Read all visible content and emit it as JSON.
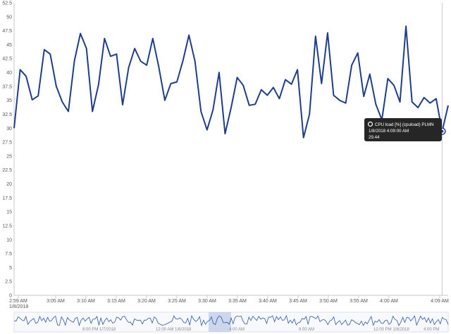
{
  "chart_data": {
    "type": "line",
    "title": "",
    "xlabel": "",
    "ylabel": "",
    "ylim": [
      0,
      52.5
    ],
    "y_ticks": [
      0,
      2.5,
      5,
      7.5,
      10,
      12.5,
      15,
      17.5,
      20,
      22.5,
      25,
      27.5,
      30,
      32.5,
      35,
      37.5,
      40,
      42.5,
      45,
      47.5,
      50,
      52.5
    ],
    "x_ticks": [
      "2:59 AM",
      "3:05 AM",
      "3:10 AM",
      "3:15 AM",
      "3:20 AM",
      "3:25 AM",
      "3:30 AM",
      "3:35 AM",
      "3:40 AM",
      "3:45 AM",
      "3:50 AM",
      "3:55 AM",
      "4:00 AM",
      "4:09 AM"
    ],
    "x_date_label": "1/8/2018",
    "grid": false,
    "series": [
      {
        "name": "CPU load [%] (cpuload) PLMN",
        "color": "#1f3d8c",
        "values": [
          30.0,
          40.5,
          39.3,
          35.1,
          35.8,
          44.1,
          43.3,
          37.5,
          34.7,
          33.0,
          42.1,
          47.0,
          44.3,
          33.0,
          37.8,
          46.1,
          42.9,
          43.3,
          34.2,
          40.9,
          44.3,
          42.0,
          41.3,
          46.1,
          41.0,
          35.0,
          38.0,
          38.3,
          42.1,
          46.7,
          42.0,
          33.0,
          29.7,
          33.3,
          40.0,
          29.0,
          33.7,
          39.1,
          37.7,
          34.1,
          34.3,
          36.9,
          35.9,
          37.3,
          35.3,
          38.7,
          37.9,
          40.5,
          28.3,
          32.5,
          46.5,
          38.0,
          47.1,
          35.9,
          35.0,
          34.5,
          41.3,
          43.5,
          35.7,
          39.7,
          34.3,
          31.5,
          38.9,
          37.7,
          34.7,
          48.3,
          34.7,
          33.7,
          35.5,
          34.5,
          35.3,
          29.44,
          34.1
        ]
      }
    ],
    "tooltip": {
      "series_label": "CPU load [%] (cpuload) PLMN",
      "timestamp": "1/8/2018 4:09:00 AM",
      "value": "29.44"
    },
    "navigator": {
      "labels": [
        "8:00 PM 1/7/2018",
        "12:00 AM 1/8/2018",
        "4:00 AM",
        "8:00 AM",
        "12:00 PM 1/8/2018",
        "4:00 PM"
      ]
    }
  }
}
